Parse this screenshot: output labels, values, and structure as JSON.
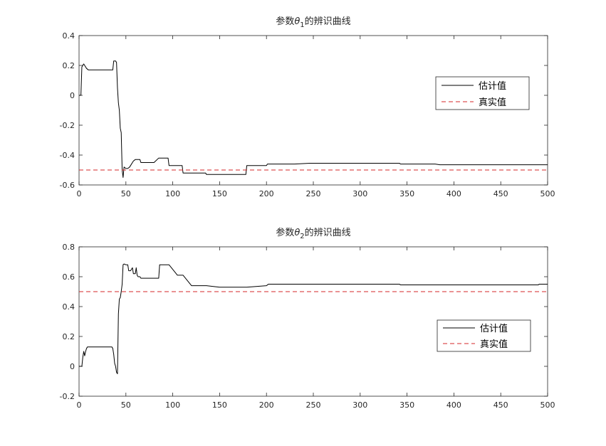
{
  "chart_data": [
    {
      "type": "line",
      "title": {
        "prefix": "参数",
        "symbol": "θ",
        "subscript": "1",
        "suffix": "的辨识曲线"
      },
      "xlim": [
        0,
        500
      ],
      "ylim": [
        -0.6,
        0.4
      ],
      "xticks": [
        0,
        50,
        100,
        150,
        200,
        250,
        300,
        350,
        400,
        450,
        500
      ],
      "yticks": [
        -0.6,
        -0.4,
        -0.2,
        0,
        0.2,
        0.4
      ],
      "xtick_labels": [
        "0",
        "50",
        "100",
        "150",
        "200",
        "250",
        "300",
        "350",
        "400",
        "450",
        "500"
      ],
      "ytick_labels": [
        "-0.6",
        "-0.4",
        "-0.2",
        "0",
        "0.2",
        "0.4"
      ],
      "grid": false,
      "legend_position": "right, upper half",
      "series": [
        {
          "name": "估计值",
          "color": "#000000",
          "style": "solid",
          "x": [
            0,
            2,
            3,
            4,
            5,
            6,
            8,
            10,
            30,
            36,
            37,
            39,
            40,
            41,
            42,
            43,
            44,
            45,
            46,
            47,
            48,
            50,
            52,
            54,
            55,
            58,
            60,
            65,
            66,
            70,
            80,
            85,
            88,
            95,
            96,
            105,
            110,
            111,
            120,
            135,
            136,
            150,
            178,
            179,
            190,
            200,
            201,
            202,
            230,
            246,
            280,
            300,
            342,
            343,
            380,
            385,
            420,
            500
          ],
          "values": [
            0,
            0,
            0.19,
            0.2,
            0.21,
            0.2,
            0.18,
            0.17,
            0.17,
            0.17,
            0.23,
            0.23,
            0.22,
            0.05,
            -0.05,
            -0.1,
            -0.22,
            -0.25,
            -0.5,
            -0.55,
            -0.48,
            -0.49,
            -0.49,
            -0.48,
            -0.47,
            -0.44,
            -0.43,
            -0.43,
            -0.45,
            -0.45,
            -0.45,
            -0.42,
            -0.42,
            -0.42,
            -0.47,
            -0.47,
            -0.47,
            -0.52,
            -0.52,
            -0.52,
            -0.53,
            -0.53,
            -0.53,
            -0.47,
            -0.47,
            -0.47,
            -0.46,
            -0.46,
            -0.46,
            -0.455,
            -0.455,
            -0.455,
            -0.455,
            -0.46,
            -0.46,
            -0.465,
            -0.465,
            -0.465
          ]
        },
        {
          "name": "真实值",
          "color": "#d62728",
          "style": "dashed",
          "x": [
            0,
            500
          ],
          "values": [
            -0.5,
            -0.5
          ]
        }
      ]
    },
    {
      "type": "line",
      "title": {
        "prefix": "参数",
        "symbol": "θ",
        "subscript": "2",
        "suffix": "的辨识曲线"
      },
      "xlim": [
        0,
        500
      ],
      "ylim": [
        -0.2,
        0.8
      ],
      "xticks": [
        0,
        50,
        100,
        150,
        200,
        250,
        300,
        350,
        400,
        450,
        500
      ],
      "yticks": [
        -0.2,
        0,
        0.2,
        0.4,
        0.6,
        0.8
      ],
      "xtick_labels": [
        "0",
        "50",
        "100",
        "150",
        "200",
        "250",
        "300",
        "350",
        "400",
        "450",
        "500"
      ],
      "ytick_labels": [
        "-0.2",
        "0",
        "0.2",
        "0.4",
        "0.6",
        "0.8"
      ],
      "grid": false,
      "legend_position": "right, lower half",
      "series": [
        {
          "name": "估计值",
          "color": "#000000",
          "style": "solid",
          "x": [
            0,
            3,
            4,
            5,
            6,
            7,
            8,
            9,
            10,
            12,
            30,
            35,
            36,
            37,
            38,
            39,
            40,
            41,
            42,
            43,
            44,
            45,
            46,
            47,
            48,
            50,
            52,
            53,
            55,
            57,
            58,
            60,
            61,
            62,
            63,
            65,
            66,
            70,
            85,
            86,
            95,
            96,
            105,
            110,
            111,
            120,
            135,
            136,
            150,
            178,
            179,
            200,
            201,
            202,
            300,
            342,
            343,
            380,
            385,
            490,
            491,
            500
          ],
          "values": [
            0,
            0,
            0.06,
            0.1,
            0.07,
            0.1,
            0.12,
            0.13,
            0.13,
            0.13,
            0.13,
            0.13,
            0.12,
            0.08,
            0.02,
            0,
            -0.04,
            -0.05,
            0.35,
            0.45,
            0.46,
            0.5,
            0.55,
            0.68,
            0.685,
            0.68,
            0.68,
            0.64,
            0.64,
            0.66,
            0.62,
            0.62,
            0.66,
            0.61,
            0.6,
            0.6,
            0.59,
            0.59,
            0.59,
            0.68,
            0.68,
            0.68,
            0.61,
            0.61,
            0.61,
            0.54,
            0.54,
            0.54,
            0.53,
            0.53,
            0.53,
            0.54,
            0.545,
            0.55,
            0.55,
            0.55,
            0.545,
            0.545,
            0.545,
            0.545,
            0.55,
            0.55
          ]
        },
        {
          "name": "真实值",
          "color": "#d62728",
          "style": "dashed",
          "x": [
            0,
            500
          ],
          "values": [
            0.5,
            0.5
          ]
        }
      ]
    }
  ]
}
